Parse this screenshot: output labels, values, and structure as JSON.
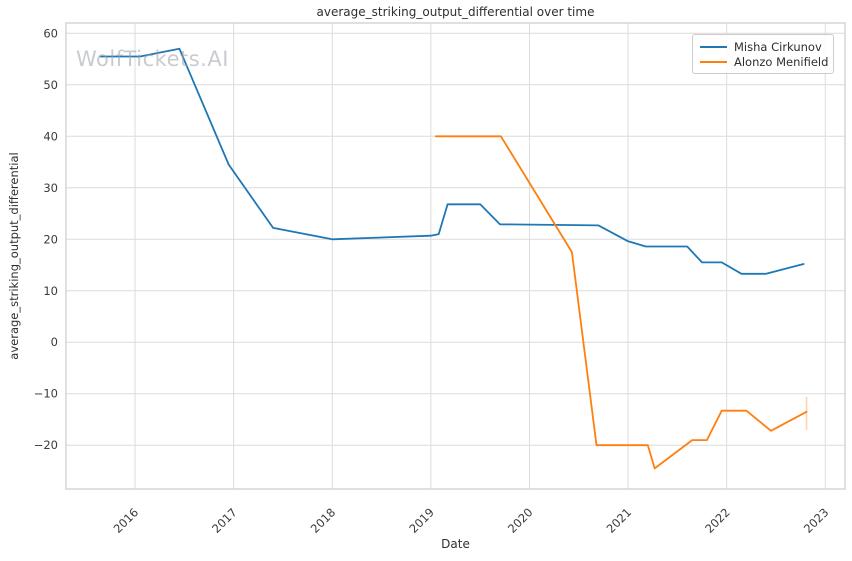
{
  "title": "average_striking_output_differential over time",
  "watermark": "WolfTickets.AI",
  "colors": {
    "misha": "#1f77b4",
    "alonzo": "#ff7f0e",
    "grid": "#dcdcdc",
    "spine": "#cccccc",
    "tick_text": "#3b3b3b",
    "error_bar": "rgba(255,127,14,0.35)"
  },
  "legend": {
    "entries": [
      {
        "label": "Misha Cirkunov",
        "color": "#1f77b4"
      },
      {
        "label": "Alonzo Menifield",
        "color": "#ff7f0e"
      }
    ]
  },
  "axes": {
    "xlabel": "Date",
    "ylabel": "average_striking_output_differential",
    "x_tick_labels": [
      "2016",
      "2017",
      "2018",
      "2019",
      "2020",
      "2021",
      "2022",
      "2023"
    ],
    "y_tick_labels": [
      "60",
      "50",
      "40",
      "30",
      "20",
      "10",
      "0",
      "−10",
      "−20"
    ]
  },
  "chart_data": {
    "type": "line",
    "title": "average_striking_output_differential over time",
    "xlabel": "Date",
    "ylabel": "average_striking_output_differential",
    "xlim": [
      2015.3,
      2023.2
    ],
    "ylim": [
      -28.5,
      62
    ],
    "x_ticks": [
      2016,
      2017,
      2018,
      2019,
      2020,
      2021,
      2022,
      2023
    ],
    "y_ticks": [
      60,
      50,
      40,
      30,
      20,
      10,
      0,
      -10,
      -20
    ],
    "grid": true,
    "legend_position": "upper right",
    "series": [
      {
        "name": "Misha Cirkunov",
        "color": "#1f77b4",
        "points": [
          [
            2015.65,
            55.5
          ],
          [
            2016.05,
            55.5
          ],
          [
            2016.45,
            57.0
          ],
          [
            2016.95,
            34.5
          ],
          [
            2017.4,
            22.2
          ],
          [
            2018.0,
            20.0
          ],
          [
            2019.0,
            20.7
          ],
          [
            2019.08,
            21.0
          ],
          [
            2019.17,
            26.8
          ],
          [
            2019.5,
            26.8
          ],
          [
            2019.7,
            22.9
          ],
          [
            2020.7,
            22.7
          ],
          [
            2021.0,
            19.6
          ],
          [
            2021.18,
            18.6
          ],
          [
            2021.6,
            18.6
          ],
          [
            2021.75,
            15.5
          ],
          [
            2021.95,
            15.5
          ],
          [
            2022.15,
            13.3
          ],
          [
            2022.4,
            13.3
          ],
          [
            2022.78,
            15.2
          ]
        ]
      },
      {
        "name": "Alonzo Menifield",
        "color": "#ff7f0e",
        "points": [
          [
            2019.05,
            40.0
          ],
          [
            2019.71,
            40.0
          ],
          [
            2020.43,
            17.5
          ],
          [
            2020.68,
            -20.0
          ],
          [
            2021.2,
            -20.0
          ],
          [
            2021.27,
            -24.5
          ],
          [
            2021.65,
            -19.0
          ],
          [
            2021.8,
            -19.0
          ],
          [
            2021.95,
            -13.3
          ],
          [
            2022.2,
            -13.3
          ],
          [
            2022.45,
            -17.2
          ],
          [
            2022.81,
            -13.5
          ]
        ]
      }
    ],
    "error_bar": {
      "series": "Alonzo Menifield",
      "x": 2022.81,
      "y_low": -17.0,
      "y_high": -10.6
    }
  }
}
